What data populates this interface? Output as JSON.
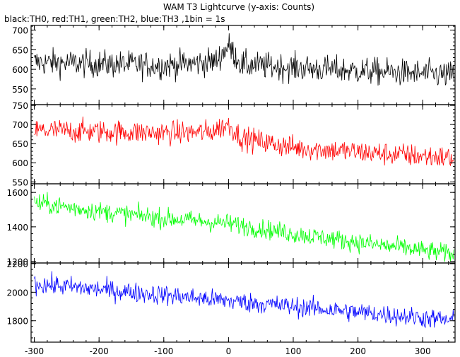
{
  "chart_data": {
    "type": "line",
    "title": "WAM T3 Lightcurve (y-axis: Counts)",
    "subtitle": "black:TH0, red:TH1, green:TH2, blue:TH3 ,1bin = 1s",
    "xlabel": "",
    "ylabel": "",
    "xlim": [
      -305,
      350
    ],
    "x_ticks": [
      -300,
      -200,
      -100,
      0,
      100,
      200,
      300
    ],
    "grid": false,
    "legend": "none",
    "panels": [
      {
        "series": "TH0",
        "color": "#000000",
        "ylim": [
          510,
          712
        ],
        "y_ticks": [
          550,
          600,
          650,
          700
        ],
        "trend": [
          [
            -300,
            618
          ],
          [
            -100,
            610
          ],
          [
            -20,
            620
          ],
          [
            0,
            660
          ],
          [
            20,
            612
          ],
          [
            150,
            600
          ],
          [
            350,
            585
          ]
        ],
        "noise": 25
      },
      {
        "series": "TH1",
        "color": "#ff0000",
        "ylim": [
          545,
          752
        ],
        "y_ticks": [
          550,
          600,
          650,
          700,
          750
        ],
        "trend": [
          [
            -300,
            685
          ],
          [
            -100,
            678
          ],
          [
            -30,
            680
          ],
          [
            0,
            700
          ],
          [
            20,
            665
          ],
          [
            100,
            640
          ],
          [
            200,
            628
          ],
          [
            350,
            612
          ]
        ],
        "noise": 22
      },
      {
        "series": "TH2",
        "color": "#00ff00",
        "ylim": [
          1190,
          1650
        ],
        "y_ticks": [
          1200,
          1400,
          1600
        ],
        "trend": [
          [
            -300,
            1540
          ],
          [
            -200,
            1490
          ],
          [
            -100,
            1450
          ],
          [
            0,
            1420
          ],
          [
            100,
            1360
          ],
          [
            200,
            1310
          ],
          [
            350,
            1240
          ]
        ],
        "noise": 40
      },
      {
        "series": "TH3",
        "color": "#0000ff",
        "ylim": [
          1650,
          2205
        ],
        "y_ticks": [
          1800,
          2000,
          2200
        ],
        "trend": [
          [
            -300,
            2060
          ],
          [
            -200,
            2020
          ],
          [
            -100,
            1980
          ],
          [
            0,
            1940
          ],
          [
            100,
            1900
          ],
          [
            200,
            1860
          ],
          [
            350,
            1800
          ]
        ],
        "noise": 50
      }
    ]
  }
}
